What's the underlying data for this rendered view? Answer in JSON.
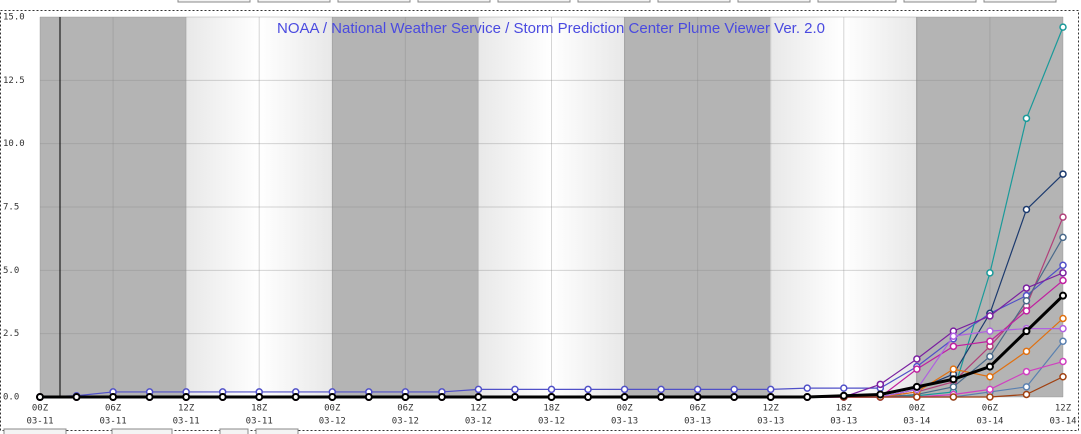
{
  "chart_data": {
    "type": "line",
    "title": "NOAA / National Weather Service / Storm Prediction Center Plume Viewer Ver. 2.0",
    "x": [
      0,
      3,
      6,
      9,
      12,
      15,
      18,
      21,
      24,
      27,
      30,
      33,
      36,
      39,
      42,
      45,
      48,
      51,
      54,
      57,
      60,
      63,
      66,
      69,
      72,
      75,
      78,
      81,
      84
    ],
    "xlim": [
      0,
      84
    ],
    "xticks": [
      {
        "value": 0,
        "label": "00Z",
        "date": "03-11"
      },
      {
        "value": 6,
        "label": "06Z",
        "date": "03-11"
      },
      {
        "value": 12,
        "label": "12Z",
        "date": "03-11"
      },
      {
        "value": 18,
        "label": "18Z",
        "date": "03-11"
      },
      {
        "value": 24,
        "label": "00Z",
        "date": "03-12"
      },
      {
        "value": 30,
        "label": "06Z",
        "date": "03-12"
      },
      {
        "value": 36,
        "label": "12Z",
        "date": "03-12"
      },
      {
        "value": 42,
        "label": "18Z",
        "date": "03-12"
      },
      {
        "value": 48,
        "label": "00Z",
        "date": "03-13"
      },
      {
        "value": 54,
        "label": "06Z",
        "date": "03-13"
      },
      {
        "value": 60,
        "label": "12Z",
        "date": "03-13"
      },
      {
        "value": 66,
        "label": "18Z",
        "date": "03-13"
      },
      {
        "value": 72,
        "label": "00Z",
        "date": "03-14"
      },
      {
        "value": 78,
        "label": "06Z",
        "date": "03-14"
      },
      {
        "value": 84,
        "label": "12Z",
        "date": "03-14"
      }
    ],
    "ylim": [
      0,
      15
    ],
    "yticks": [
      {
        "value": 0,
        "label": "0.0"
      },
      {
        "value": 2.5,
        "label": "2.5"
      },
      {
        "value": 5,
        "label": "5.0"
      },
      {
        "value": 7.5,
        "label": "7.5"
      },
      {
        "value": 10,
        "label": "10.0"
      },
      {
        "value": 12.5,
        "label": "12.5"
      },
      {
        "value": 15,
        "label": "15.0"
      }
    ],
    "grid": true,
    "series": [
      {
        "color": "#5050c8",
        "values": [
          0,
          0.05,
          0.2,
          0.2,
          0.2,
          0.2,
          0.2,
          0.2,
          0.2,
          0.2,
          0.2,
          0.2,
          0.3,
          0.3,
          0.3,
          0.3,
          0.3,
          0.3,
          0.3,
          0.3,
          0.3,
          0.35,
          0.35,
          0.35,
          1.2,
          2.3,
          3.3,
          4.0,
          5.2
        ]
      },
      {
        "color": "#1a9a9a",
        "values": [
          0,
          0,
          0,
          0,
          0,
          0,
          0,
          0,
          0,
          0,
          0,
          0,
          0,
          0,
          0,
          0,
          0,
          0,
          0,
          0,
          0,
          0,
          0,
          0,
          0.05,
          0.2,
          4.9,
          11.0,
          14.6
        ]
      },
      {
        "color": "#1c3a6e",
        "values": [
          0,
          0,
          0,
          0,
          0,
          0,
          0,
          0,
          0,
          0,
          0,
          0,
          0,
          0,
          0,
          0,
          0,
          0,
          0,
          0,
          0,
          0,
          0,
          0,
          0.3,
          0.9,
          3.3,
          7.4,
          8.8
        ]
      },
      {
        "color": "#b0407a",
        "values": [
          0,
          0,
          0,
          0,
          0,
          0,
          0,
          0,
          0,
          0,
          0,
          0,
          0,
          0,
          0,
          0,
          0,
          0,
          0,
          0,
          0,
          0,
          0,
          0,
          0.2,
          0.6,
          2.0,
          3.6,
          7.1
        ]
      },
      {
        "color": "#4a6a8a",
        "values": [
          0,
          0,
          0,
          0,
          0,
          0,
          0,
          0,
          0,
          0,
          0,
          0,
          0,
          0,
          0,
          0,
          0,
          0,
          0,
          0,
          0,
          0,
          0,
          0,
          0.1,
          0.4,
          1.6,
          3.8,
          6.3
        ]
      },
      {
        "color": "#7a1fa0",
        "values": [
          0,
          0,
          0,
          0,
          0,
          0,
          0,
          0,
          0,
          0,
          0,
          0,
          0,
          0,
          0,
          0,
          0,
          0,
          0,
          0,
          0,
          0,
          0,
          0.5,
          1.5,
          2.6,
          3.2,
          4.3,
          4.9
        ]
      },
      {
        "color": "#c020a0",
        "values": [
          0,
          0,
          0,
          0,
          0,
          0,
          0,
          0,
          0,
          0,
          0,
          0,
          0,
          0,
          0,
          0,
          0,
          0,
          0,
          0,
          0,
          0,
          0,
          0,
          1.1,
          2.0,
          2.2,
          3.4,
          4.6
        ]
      },
      {
        "color": "#e07010",
        "values": [
          0,
          0,
          0,
          0,
          0,
          0,
          0,
          0,
          0,
          0,
          0,
          0,
          0,
          0,
          0,
          0,
          0,
          0,
          0,
          0,
          0,
          0,
          0,
          0,
          0.2,
          1.1,
          0.8,
          1.8,
          3.1
        ]
      },
      {
        "color": "#b060e0",
        "values": [
          0,
          0,
          0,
          0,
          0,
          0,
          0,
          0,
          0,
          0,
          0,
          0,
          0,
          0,
          0,
          0,
          0,
          0,
          0,
          0,
          0,
          0,
          0,
          0,
          0.3,
          2.4,
          2.6,
          2.7,
          2.7
        ]
      },
      {
        "color": "#5a80b0",
        "values": [
          0,
          0,
          0,
          0,
          0,
          0,
          0,
          0,
          0,
          0,
          0,
          0,
          0,
          0,
          0,
          0,
          0,
          0,
          0,
          0,
          0,
          0,
          0,
          0,
          0,
          0,
          0.2,
          0.4,
          2.2
        ]
      },
      {
        "color": "#d040c0",
        "values": [
          0,
          0,
          0,
          0,
          0,
          0,
          0,
          0,
          0,
          0,
          0,
          0,
          0,
          0,
          0,
          0,
          0,
          0,
          0,
          0,
          0,
          0,
          0,
          0,
          0,
          0.1,
          0.3,
          1.0,
          1.4
        ]
      },
      {
        "color": "#a04010",
        "values": [
          0,
          0,
          0,
          0,
          0,
          0,
          0,
          0,
          0,
          0,
          0,
          0,
          0,
          0,
          0,
          0,
          0,
          0,
          0,
          0,
          0,
          0,
          0,
          0,
          0,
          0,
          0,
          0.1,
          0.8
        ]
      },
      {
        "color": "#000000",
        "width": 3,
        "values": [
          0,
          0,
          0,
          0,
          0,
          0,
          0,
          0,
          0,
          0,
          0,
          0,
          0,
          0,
          0,
          0,
          0,
          0,
          0,
          0,
          0,
          0,
          0.05,
          0.1,
          0.4,
          0.7,
          1.2,
          2.6,
          4.0
        ]
      }
    ]
  }
}
